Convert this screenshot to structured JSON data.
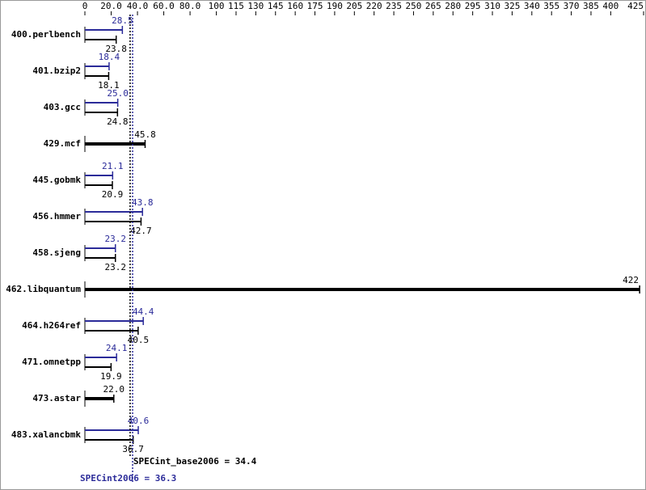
{
  "chart_data": {
    "type": "bar",
    "orientation": "horizontal",
    "categories": [
      "400.perlbench",
      "401.bzip2",
      "403.gcc",
      "429.mcf",
      "445.gobmk",
      "456.hmmer",
      "458.sjeng",
      "462.libquantum",
      "464.h264ref",
      "471.omnetpp",
      "473.astar",
      "483.xalancbmk"
    ],
    "series": [
      {
        "color": "#2b2b99",
        "values": [
          28.5,
          18.4,
          25.0,
          null,
          21.1,
          43.8,
          23.2,
          null,
          44.4,
          24.1,
          null,
          40.6
        ],
        "value_labels": [
          "28.5",
          "18.4",
          "25.0",
          null,
          "21.1",
          "43.8",
          "23.2",
          null,
          "44.4",
          "24.1",
          null,
          "40.6"
        ]
      },
      {
        "color": "#000000",
        "values": [
          23.8,
          18.1,
          24.8,
          45.8,
          20.9,
          42.7,
          23.2,
          422,
          40.5,
          19.9,
          22.0,
          36.7
        ],
        "value_labels": [
          "23.8",
          "18.1",
          "24.8",
          "45.8",
          "20.9",
          "42.7",
          "23.2",
          "422",
          "40.5",
          "19.9",
          "22.0",
          "36.7"
        ]
      }
    ],
    "xlim": [
      0,
      425
    ],
    "xticks": [
      0,
      {
        "value": 20,
        "label": "20.0"
      },
      {
        "value": 40,
        "label": "40.0"
      },
      {
        "value": 60,
        "label": "60.0"
      },
      {
        "value": 80,
        "label": "80.0"
      },
      100,
      115,
      130,
      145,
      160,
      175,
      190,
      205,
      220,
      235,
      250,
      265,
      280,
      295,
      310,
      325,
      340,
      355,
      370,
      385,
      400,
      425
    ],
    "reference_lines": [
      {
        "label": "SPECint_base2006 = 34.4",
        "value": 34.4,
        "color": "#000000"
      },
      {
        "label": "SPECint2006 = 36.3",
        "value": 36.3,
        "color": "#2b2b99"
      }
    ]
  }
}
